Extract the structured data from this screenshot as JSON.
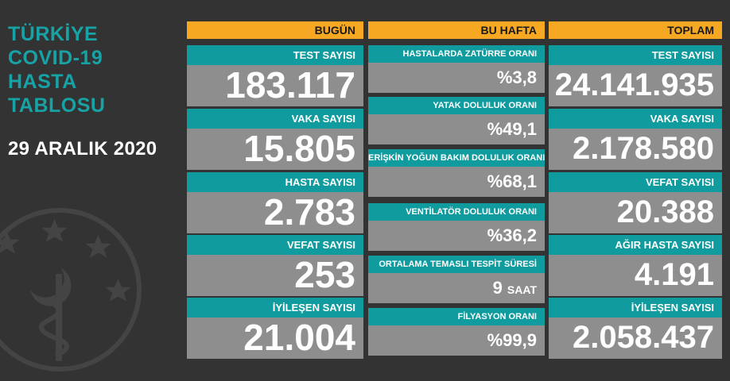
{
  "sidebar": {
    "title_lines": [
      "TÜRKİYE",
      "COVID-19",
      "HASTA",
      "TABLOSU"
    ],
    "date": "29 ARALIK 2020"
  },
  "today": {
    "header": "BUGÜN",
    "cards": [
      {
        "label": "TEST SAYISI",
        "value": "183.117"
      },
      {
        "label": "VAKA SAYISI",
        "value": "15.805"
      },
      {
        "label": "HASTA SAYISI",
        "value": "2.783"
      },
      {
        "label": "VEFAT SAYISI",
        "value": "253"
      },
      {
        "label": "İYİLEŞEN SAYISI",
        "value": "21.004"
      }
    ]
  },
  "week": {
    "header": "BU HAFTA",
    "cards": [
      {
        "label": "HASTALARDA ZATÜRRE ORANI",
        "value": "%3,8"
      },
      {
        "label": "YATAK DOLULUK ORANI",
        "value": "%49,1"
      },
      {
        "label": "ERİŞKİN YOĞUN BAKIM DOLULUK ORANI",
        "value": "%68,1"
      },
      {
        "label": "VENTİLATÖR DOLULUK ORANI",
        "value": "%36,2"
      },
      {
        "label": "ORTALAMA TEMASLI TESPİT SÜRESİ",
        "value": "9",
        "unit": "SAAT"
      },
      {
        "label": "FİLYASYON ORANI",
        "value": "%99,9"
      }
    ]
  },
  "total": {
    "header": "TOPLAM",
    "cards": [
      {
        "label": "TEST SAYISI",
        "value": "24.141.935"
      },
      {
        "label": "VAKA SAYISI",
        "value": "2.178.580"
      },
      {
        "label": "VEFAT SAYISI",
        "value": "20.388"
      },
      {
        "label": "AĞIR HASTA SAYISI",
        "value": "4.191"
      },
      {
        "label": "İYİLEŞEN SAYISI",
        "value": "2.058.437"
      }
    ]
  },
  "colors": {
    "background": "#333333",
    "header": "#f7a823",
    "label": "#109c9e",
    "card": "#8e8e8e",
    "title": "#17a3a6"
  }
}
